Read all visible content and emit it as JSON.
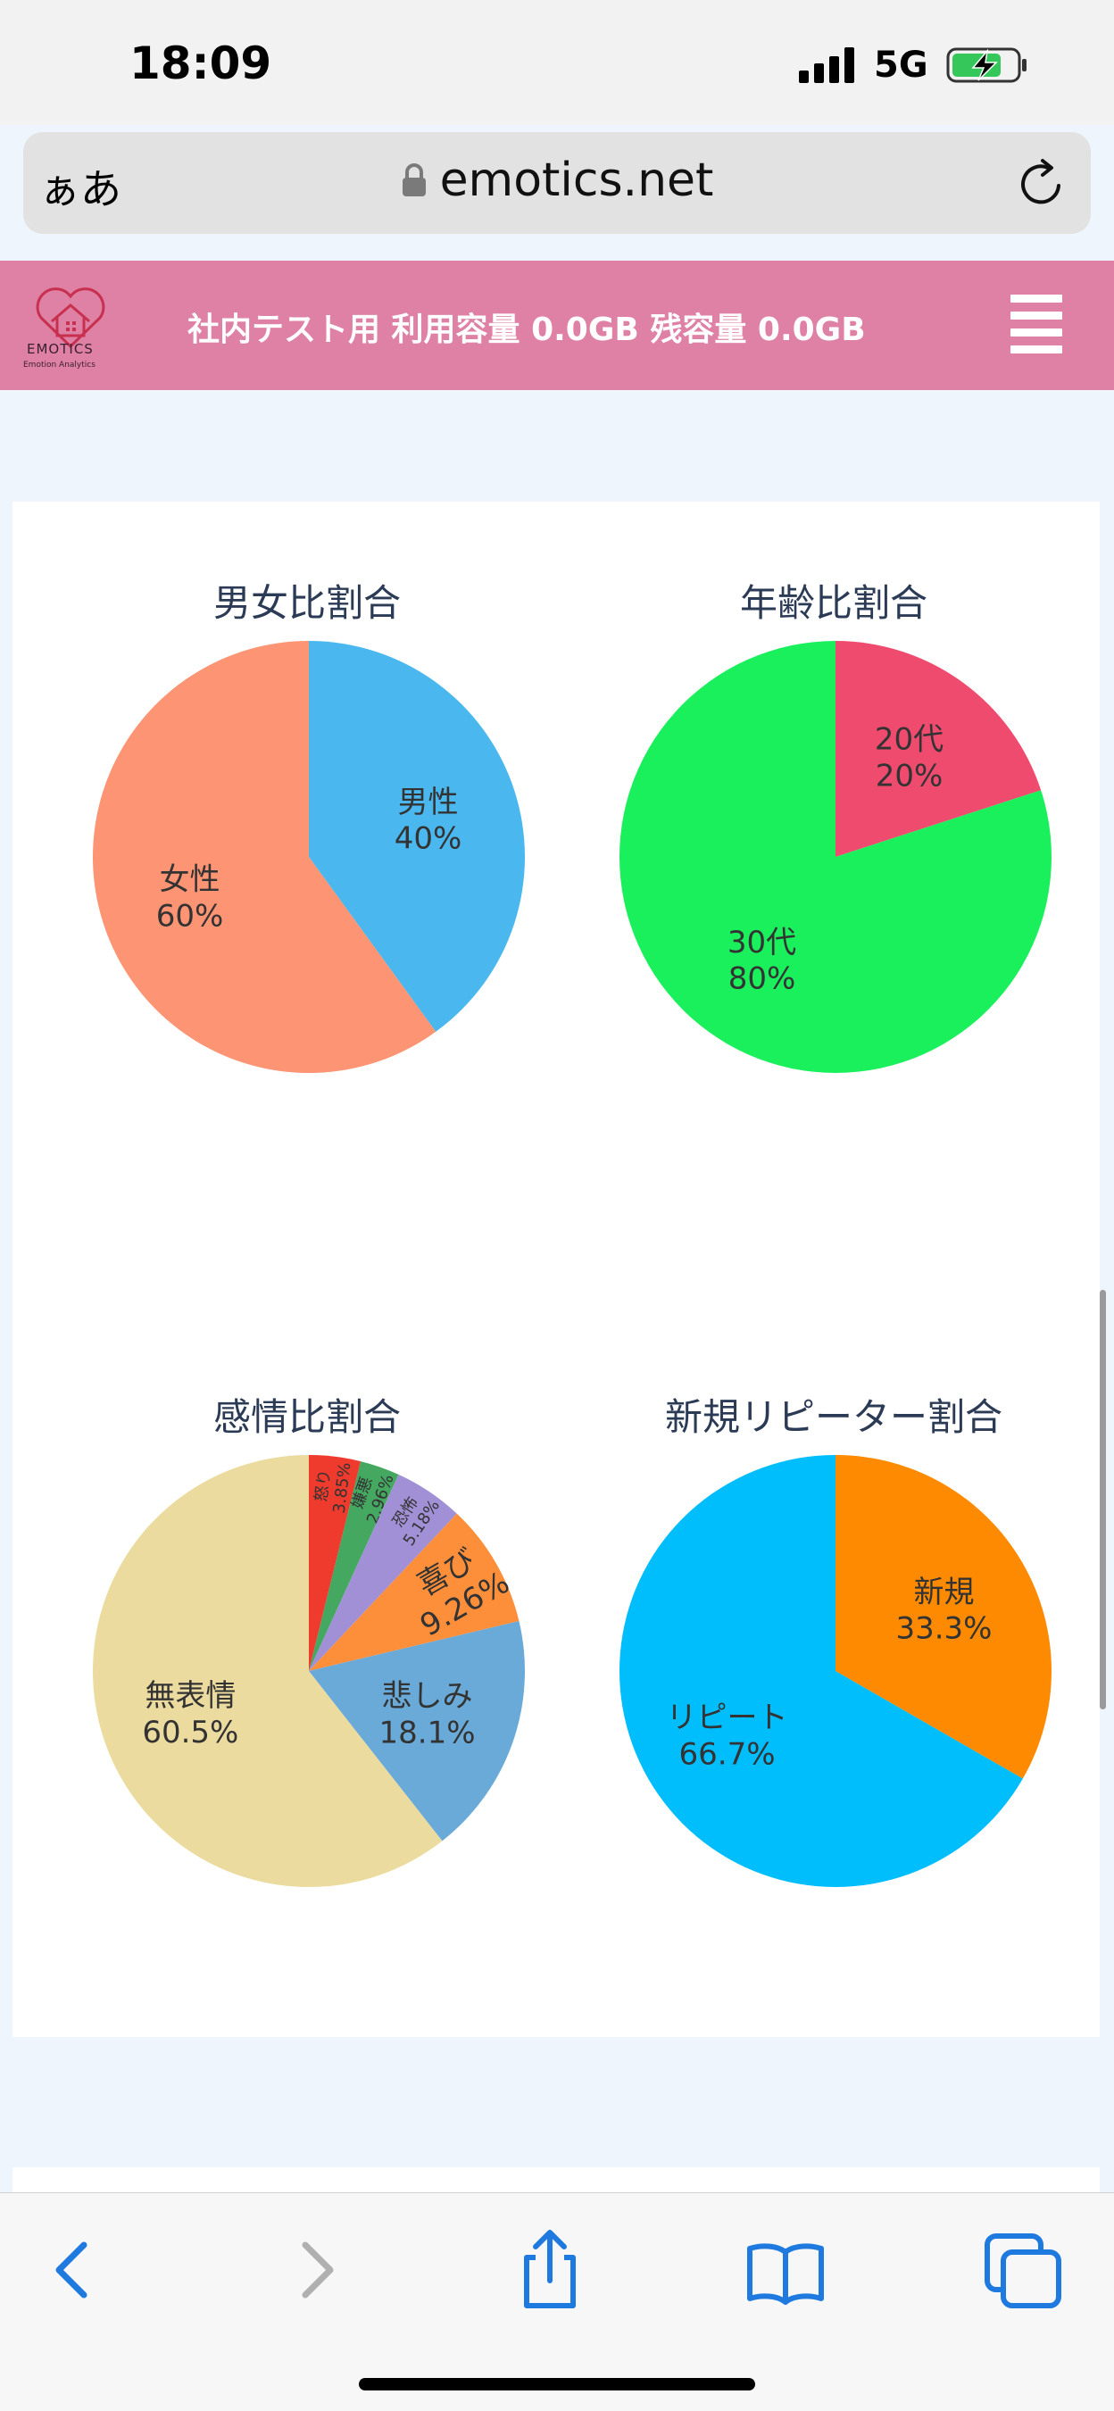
{
  "status_bar": {
    "time": "18:09",
    "network": "5G"
  },
  "browser": {
    "aa": "ぁあ",
    "url": "emotics.net"
  },
  "header": {
    "logo_text": "EMOTICS",
    "logo_sub": "Emotion Analytics",
    "title": "社内テスト用  利用容量 0.0GB  残容量 0.0GB"
  },
  "colors": {
    "header_bg": "#df80a5",
    "toolbar_icon": "#1f7ae0",
    "toolbar_icon_disabled": "#b0b0b0"
  },
  "chart_data": [
    {
      "type": "pie",
      "title": "男女比割合",
      "slices": [
        {
          "label": "男性",
          "value": 40,
          "display": "40%",
          "color": "#4ab8ef"
        },
        {
          "label": "女性",
          "value": 60,
          "display": "60%",
          "color": "#fd9473"
        }
      ]
    },
    {
      "type": "pie",
      "title": "年齢比割合",
      "slices": [
        {
          "label": "20代",
          "value": 20,
          "display": "20%",
          "color": "#ef4b6f"
        },
        {
          "label": "30代",
          "value": 80,
          "display": "80%",
          "color": "#1aef5c"
        }
      ]
    },
    {
      "type": "pie",
      "title": "感情比割合",
      "slices": [
        {
          "label": "怒り",
          "value": 3.85,
          "display": "3.85%",
          "color": "#ee3b2d"
        },
        {
          "label": "嫌悪",
          "value": 2.96,
          "display": "2.96%",
          "color": "#44a860"
        },
        {
          "label": "恐怖",
          "value": 5.18,
          "display": "5.18%",
          "color": "#a190d6"
        },
        {
          "label": "喜び",
          "value": 9.26,
          "display": "9.26%",
          "color": "#fd8f3a"
        },
        {
          "label": "悲しみ",
          "value": 18.1,
          "display": "18.1%",
          "color": "#6aaad8"
        },
        {
          "label": "無表情",
          "value": 60.5,
          "display": "60.5%",
          "color": "#ebdb9f"
        }
      ]
    },
    {
      "type": "pie",
      "title": "新規リピーター割合",
      "slices": [
        {
          "label": "新規",
          "value": 33.3,
          "display": "33.3%",
          "color": "#fd8a00"
        },
        {
          "label": "リピート",
          "value": 66.7,
          "display": "66.7%",
          "color": "#00bdfb"
        }
      ]
    }
  ],
  "toolbar": {
    "back": "chevron-left-icon",
    "forward": "chevron-right-icon",
    "share": "share-icon",
    "bookmarks": "book-icon",
    "tabs": "tabs-icon"
  }
}
